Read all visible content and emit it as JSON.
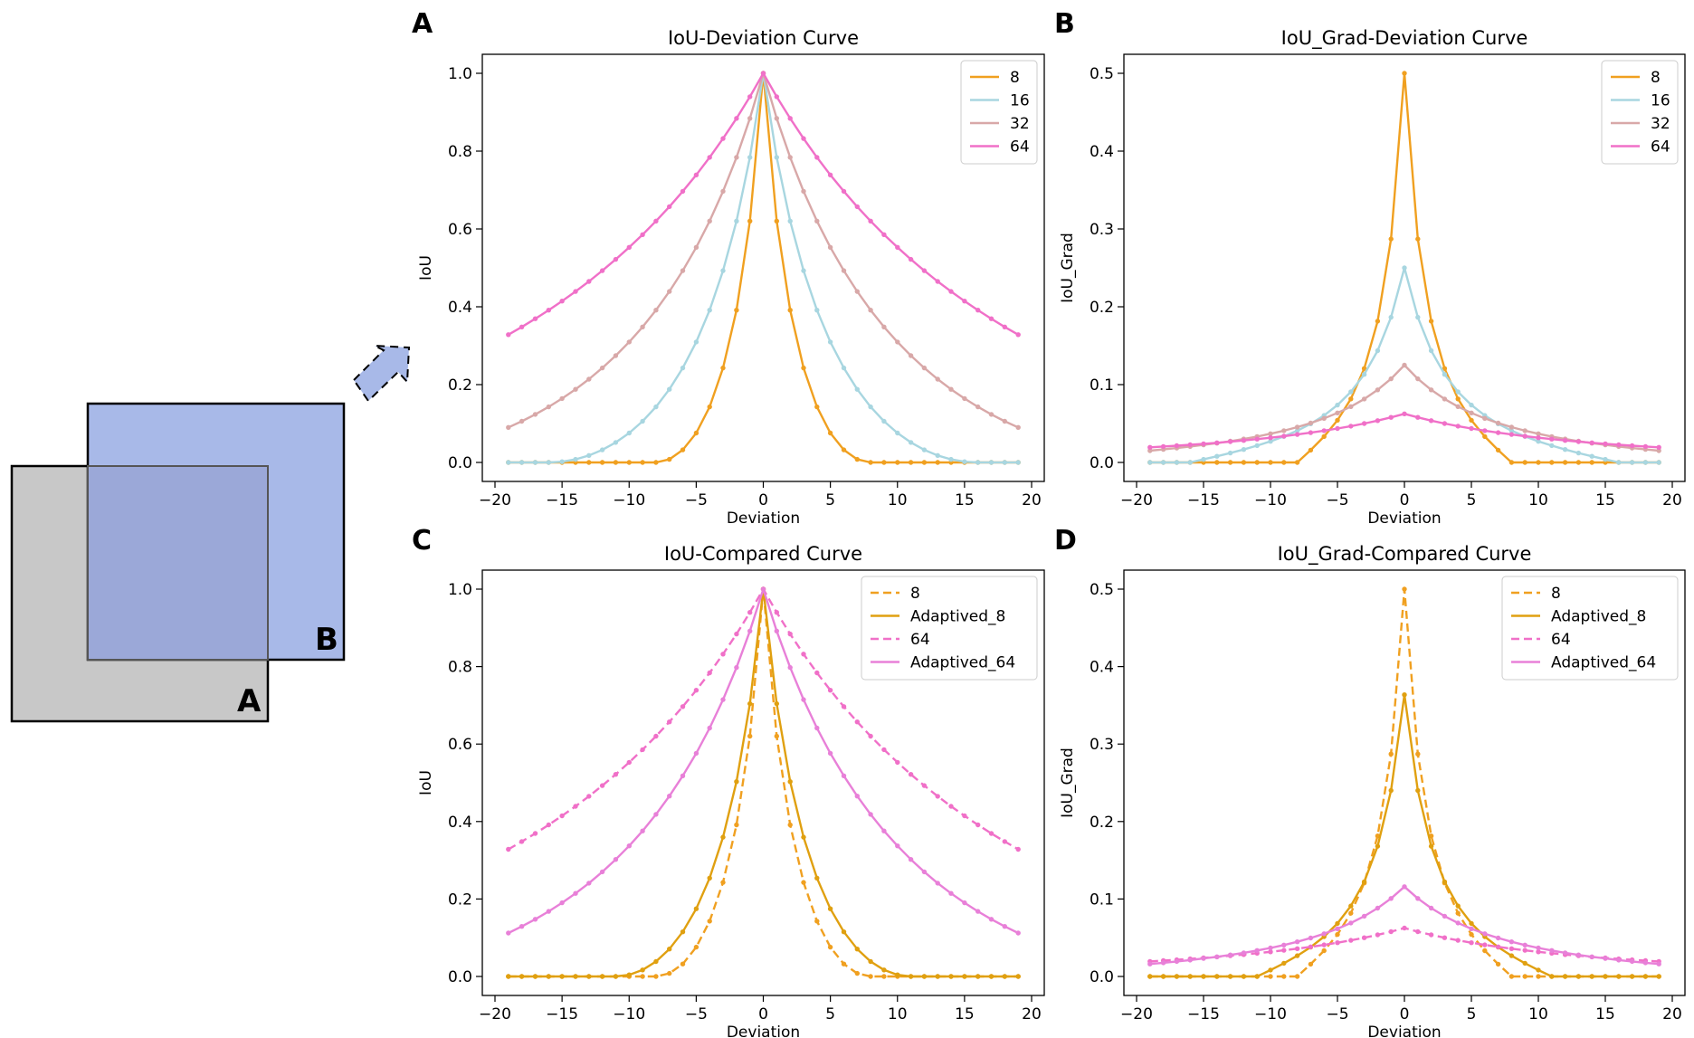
{
  "illustration": {
    "box_a_label": "A",
    "box_b_label": "B",
    "box_a_color": "#c8c8c8",
    "box_b_color": "#a8b9e8",
    "overlap_color": "#9ba8d8",
    "arrow_color": "#a8b9e8"
  },
  "series_colors": {
    "8": "#f0a020",
    "16": "#a8d6e0",
    "32": "#d8a8a8",
    "64": "#f070c8",
    "Adaptived_8": "#e0a010",
    "Adaptived_64": "#e880d8"
  },
  "chart_data": [
    {
      "panel": "A",
      "type": "line",
      "title": "IoU-Deviation Curve",
      "xlabel": "Deviation",
      "ylabel": "IoU",
      "xlim": [
        -20,
        20
      ],
      "ylim": [
        0.0,
        1.0
      ],
      "xticks": [
        "−20",
        "−15",
        "−10",
        "−5",
        "0",
        "5",
        "10",
        "15",
        "20"
      ],
      "yticks": [
        "0.0",
        "0.2",
        "0.4",
        "0.6",
        "0.8",
        "1.0"
      ],
      "legend_position": "upper-right",
      "series": [
        {
          "name": "8",
          "style": "solid",
          "formula": "iou",
          "box_size": 8
        },
        {
          "name": "16",
          "style": "solid",
          "formula": "iou",
          "box_size": 16
        },
        {
          "name": "32",
          "style": "solid",
          "formula": "iou",
          "box_size": 32
        },
        {
          "name": "64",
          "style": "solid",
          "formula": "iou",
          "box_size": 64
        }
      ],
      "x_range": [
        -19,
        19
      ]
    },
    {
      "panel": "B",
      "type": "line",
      "title": "IoU_Grad-Deviation Curve",
      "xlabel": "Deviation",
      "ylabel": "IoU_Grad",
      "xlim": [
        -20,
        20
      ],
      "ylim": [
        0.0,
        0.5
      ],
      "xticks": [
        "−20",
        "−15",
        "−10",
        "−5",
        "0",
        "5",
        "10",
        "15",
        "20"
      ],
      "yticks": [
        "0.0",
        "0.1",
        "0.2",
        "0.3",
        "0.4",
        "0.5"
      ],
      "legend_position": "upper-right",
      "series": [
        {
          "name": "8",
          "style": "solid",
          "formula": "grad",
          "box_size": 8
        },
        {
          "name": "16",
          "style": "solid",
          "formula": "grad",
          "box_size": 16
        },
        {
          "name": "32",
          "style": "solid",
          "formula": "grad",
          "box_size": 32
        },
        {
          "name": "64",
          "style": "solid",
          "formula": "grad",
          "box_size": 64
        }
      ],
      "x_range": [
        -19,
        19
      ]
    },
    {
      "panel": "C",
      "type": "line",
      "title": "IoU-Compared Curve",
      "xlabel": "Deviation",
      "ylabel": "IoU",
      "xlim": [
        -20,
        20
      ],
      "ylim": [
        0.0,
        1.0
      ],
      "xticks": [
        "−20",
        "−15",
        "−10",
        "−5",
        "0",
        "5",
        "10",
        "15",
        "20"
      ],
      "yticks": [
        "0.0",
        "0.2",
        "0.4",
        "0.6",
        "0.8",
        "1.0"
      ],
      "legend_position": "upper-right",
      "series": [
        {
          "name": "8",
          "style": "dashed",
          "formula": "iou",
          "box_size": 8
        },
        {
          "name": "Adaptived_8",
          "style": "solid",
          "formula": "iou",
          "box_size": 11
        },
        {
          "name": "64",
          "style": "dashed",
          "formula": "iou",
          "box_size": 64
        },
        {
          "name": "Adaptived_64",
          "style": "solid",
          "formula": "iou",
          "box_size": 34.5
        }
      ],
      "x_range": [
        -19,
        19
      ]
    },
    {
      "panel": "D",
      "type": "line",
      "title": "IoU_Grad-Compared Curve",
      "xlabel": "Deviation",
      "ylabel": "IoU_Grad",
      "xlim": [
        -20,
        20
      ],
      "ylim": [
        0.0,
        0.5
      ],
      "xticks": [
        "−20",
        "−15",
        "−10",
        "−5",
        "0",
        "5",
        "10",
        "15",
        "20"
      ],
      "yticks": [
        "0.0",
        "0.1",
        "0.2",
        "0.3",
        "0.4",
        "0.5"
      ],
      "legend_position": "upper-right",
      "series": [
        {
          "name": "8",
          "style": "dashed",
          "formula": "grad",
          "box_size": 8
        },
        {
          "name": "Adaptived_8",
          "style": "solid",
          "formula": "grad",
          "box_size": 11
        },
        {
          "name": "64",
          "style": "dashed",
          "formula": "grad",
          "box_size": 64
        },
        {
          "name": "Adaptived_64",
          "style": "solid",
          "formula": "grad",
          "box_size": 34.5
        }
      ],
      "x_range": [
        -19,
        19
      ]
    }
  ]
}
